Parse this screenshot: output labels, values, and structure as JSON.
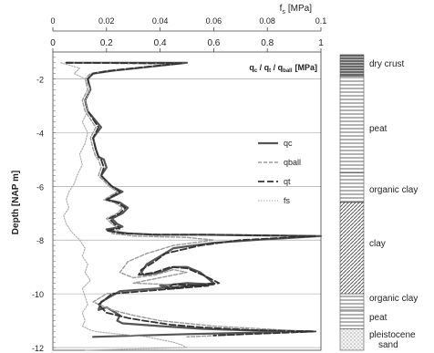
{
  "chart_data": {
    "type": "line",
    "x_top_axis": {
      "label_main": "f",
      "label_sub": "s",
      "label_unit": "[MPa]",
      "ticks": [
        "0",
        "0.02",
        "0.04",
        "0.06",
        "0.08",
        "0.1"
      ],
      "xlim": [
        0,
        0.1
      ]
    },
    "x_bottom_axis": {
      "label_parts": [
        {
          "main": "q",
          "sub": "c"
        },
        {
          "main": " / q",
          "sub": "t"
        },
        {
          "main": " / q",
          "sub": "ball"
        }
      ],
      "label_unit": "[MPa]",
      "ticks": [
        "0",
        "0.2",
        "0.4",
        "0.6",
        "0.8",
        "1"
      ],
      "xlim": [
        0,
        1
      ]
    },
    "y_axis": {
      "label": "Depth [NAP m]",
      "ticks": [
        "-2",
        "-4",
        "-6",
        "-8",
        "-10",
        "-12"
      ],
      "ylim": [
        -12.1,
        -1.0
      ]
    },
    "grid": "horizontal",
    "legend": {
      "placement": "center-right",
      "entries": [
        {
          "name": "qc",
          "color": "#555555",
          "style": "solid"
        },
        {
          "name": "qball",
          "color": "#999999",
          "style": "dashed"
        },
        {
          "name": "qt",
          "color": "#333333",
          "style": "longdash"
        },
        {
          "name": "fs",
          "color": "#aaaaaa",
          "style": "dotted"
        }
      ]
    },
    "series": [
      {
        "name": "qc",
        "axis": "bottom",
        "x": [
          0.05,
          0.5,
          0.22,
          0.15,
          0.13,
          0.14,
          0.12,
          0.13,
          0.18,
          0.15,
          0.16,
          0.17,
          0.19,
          0.2,
          0.18,
          0.21,
          0.22,
          0.26,
          0.2,
          0.25,
          0.28,
          0.26,
          0.22,
          0.24,
          0.26,
          0.2,
          0.22,
          0.24,
          0.28,
          0.38,
          0.55,
          0.7,
          1.0,
          0.75,
          0.6,
          0.45,
          0.4,
          0.35,
          0.33,
          0.34,
          0.4,
          0.45,
          0.5,
          0.55,
          0.6,
          0.45,
          0.4,
          0.5,
          0.6,
          0.25,
          0.18,
          0.17,
          0.2,
          0.25,
          0.24,
          0.26,
          0.4,
          0.55,
          0.7,
          0.97,
          0.5,
          0.15
        ],
        "y": [
          -1.4,
          -1.4,
          -1.7,
          -1.8,
          -2.0,
          -2.4,
          -2.8,
          -3.2,
          -3.8,
          -4.2,
          -4.6,
          -4.9,
          -5.0,
          -5.3,
          -5.6,
          -5.9,
          -6.0,
          -6.2,
          -6.5,
          -6.6,
          -6.8,
          -7.0,
          -7.2,
          -7.4,
          -7.5,
          -7.6,
          -7.65,
          -7.7,
          -7.75,
          -7.8,
          -7.8,
          -7.82,
          -7.85,
          -8.0,
          -8.1,
          -8.3,
          -8.6,
          -8.9,
          -9.2,
          -9.3,
          -9.2,
          -9.0,
          -9.0,
          -9.2,
          -9.6,
          -9.8,
          -9.7,
          -9.6,
          -9.65,
          -9.9,
          -10.3,
          -10.6,
          -10.5,
          -10.8,
          -11.0,
          -11.1,
          -11.2,
          -11.3,
          -11.35,
          -11.4,
          -11.5,
          -11.6
        ]
      },
      {
        "name": "qball",
        "axis": "bottom",
        "x": [
          0.05,
          0.45,
          0.2,
          0.14,
          0.12,
          0.13,
          0.11,
          0.12,
          0.16,
          0.14,
          0.15,
          0.16,
          0.17,
          0.18,
          0.17,
          0.2,
          0.21,
          0.24,
          0.19,
          0.23,
          0.26,
          0.24,
          0.2,
          0.22,
          0.25,
          0.22,
          0.26,
          0.3,
          0.5,
          0.6,
          0.45,
          0.35,
          0.28,
          0.25,
          0.3,
          0.38,
          0.45,
          0.5,
          0.35,
          0.3,
          0.55,
          0.2,
          0.15,
          0.22,
          0.3,
          0.4,
          0.6,
          0.95,
          0.5
        ],
        "y": [
          -1.4,
          -1.45,
          -1.7,
          -1.8,
          -2.0,
          -2.4,
          -2.8,
          -3.2,
          -3.8,
          -4.2,
          -4.6,
          -4.9,
          -5.0,
          -5.3,
          -5.6,
          -5.9,
          -6.0,
          -6.2,
          -6.5,
          -6.6,
          -6.8,
          -7.0,
          -7.2,
          -7.4,
          -7.6,
          -7.75,
          -7.8,
          -7.85,
          -7.9,
          -8.0,
          -8.2,
          -8.5,
          -8.8,
          -9.2,
          -9.4,
          -9.3,
          -9.1,
          -9.2,
          -9.5,
          -9.6,
          -9.7,
          -10.0,
          -10.3,
          -10.6,
          -10.8,
          -11.0,
          -11.2,
          -11.4,
          -11.6
        ]
      },
      {
        "name": "qt",
        "axis": "bottom",
        "x": [
          0.05,
          0.48,
          0.21,
          0.15,
          0.13,
          0.14,
          0.12,
          0.13,
          0.17,
          0.15,
          0.16,
          0.17,
          0.18,
          0.19,
          0.18,
          0.21,
          0.22,
          0.25,
          0.2,
          0.24,
          0.27,
          0.25,
          0.21,
          0.23,
          0.25,
          0.2,
          0.23,
          0.26,
          0.4,
          0.6,
          0.75,
          0.98,
          0.7,
          0.55,
          0.42,
          0.38,
          0.33,
          0.32,
          0.38,
          0.44,
          0.5,
          0.56,
          0.62,
          0.42,
          0.45,
          0.58,
          0.22,
          0.17,
          0.2,
          0.28,
          0.34,
          0.44,
          0.56,
          0.75,
          0.98,
          0.6
        ],
        "y": [
          -1.4,
          -1.42,
          -1.7,
          -1.8,
          -2.0,
          -2.4,
          -2.8,
          -3.2,
          -3.8,
          -4.2,
          -4.6,
          -4.9,
          -5.0,
          -5.3,
          -5.6,
          -5.9,
          -6.0,
          -6.2,
          -6.5,
          -6.6,
          -6.8,
          -7.0,
          -7.2,
          -7.4,
          -7.55,
          -7.65,
          -7.7,
          -7.75,
          -7.8,
          -7.8,
          -7.82,
          -7.85,
          -8.0,
          -8.2,
          -8.5,
          -8.8,
          -9.1,
          -9.3,
          -9.2,
          -9.0,
          -9.05,
          -9.3,
          -9.6,
          -9.8,
          -9.65,
          -9.7,
          -10.0,
          -10.4,
          -10.7,
          -10.9,
          -11.0,
          -11.15,
          -11.25,
          -11.35,
          -11.4,
          -11.55
        ]
      },
      {
        "name": "fs",
        "axis": "top",
        "x": [
          0.003,
          0.01,
          0.008,
          0.012,
          0.014,
          0.012,
          0.013,
          0.011,
          0.013,
          0.012,
          0.01,
          0.011,
          0.009,
          0.008,
          0.006,
          0.005,
          0.006,
          0.004,
          0.005,
          0.007,
          0.009,
          0.01,
          0.012,
          0.011,
          0.013,
          0.012,
          0.014,
          0.011,
          0.012,
          0.013,
          0.011,
          0.012,
          0.011,
          0.013,
          0.014,
          0.016,
          0.02,
          0.025,
          0.03,
          0.035,
          0.04,
          0.045,
          0.048,
          0.05,
          0.012
        ],
        "y": [
          -1.4,
          -1.6,
          -1.8,
          -2.0,
          -2.4,
          -2.8,
          -3.2,
          -3.6,
          -4.0,
          -4.4,
          -4.8,
          -5.2,
          -5.6,
          -5.9,
          -6.2,
          -6.5,
          -6.8,
          -7.1,
          -7.4,
          -7.7,
          -7.9,
          -8.0,
          -8.3,
          -8.6,
          -8.9,
          -9.2,
          -9.5,
          -9.8,
          -10.1,
          -10.4,
          -10.7,
          -11.0,
          -11.2,
          -11.3,
          -11.35,
          -11.4,
          -11.45,
          -11.5,
          -11.55,
          -11.6,
          -11.7,
          -11.8,
          -11.9,
          -12.0,
          -12.1
        ]
      }
    ],
    "soil_column": {
      "layers": [
        {
          "label": "dry crust",
          "top": -1.1,
          "bottom": -1.9,
          "pattern": "dense-stripes"
        },
        {
          "label": "peat",
          "top": -1.9,
          "bottom": -5.5,
          "pattern": "horizontal-lines"
        },
        {
          "label": "organic clay",
          "top": -5.5,
          "bottom": -6.6,
          "pattern": "horizontal-lines"
        },
        {
          "label": "clay",
          "top": -6.6,
          "bottom": -10.0,
          "pattern": "diagonal-hatch"
        },
        {
          "label": "organic clay",
          "top": -10.0,
          "bottom": -10.6,
          "pattern": "horizontal-lines"
        },
        {
          "label": "peat",
          "top": -10.6,
          "bottom": -11.3,
          "pattern": "horizontal-lines"
        },
        {
          "label": "pleistocene sand",
          "top": -11.3,
          "bottom": -12.1,
          "pattern": "dots"
        }
      ]
    }
  }
}
